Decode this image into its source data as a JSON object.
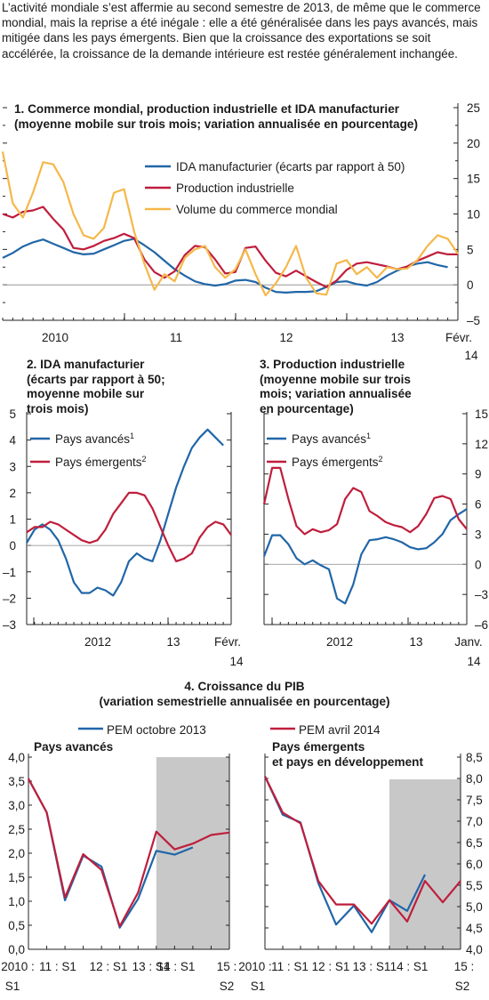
{
  "intro": "L’activité mondiale s’est affermie au second semestre de 2013, de même que le commerce mondial, mais la reprise a été inégale : elle a été généralisée dans les pays avancés, mais mitigée dans les pays émergents. Bien que la croissance des exportations se soit accélérée, la croissance de la demande intérieure est restée généralement inchangée.",
  "panel1": {
    "title_line1": "1. Commerce mondial, production industrielle et IDA manufacturier",
    "title_line2": "(moyenne mobile sur trois mois; variation annualisée en pourcentage)"
  },
  "panel2": {
    "title_lines": [
      "2. IDA manufacturier",
      "(écarts par rapport à 50;",
      "moyenne mobile sur",
      "trois mois)"
    ]
  },
  "panel3": {
    "title_lines": [
      "3. Production industrielle",
      "(moyenne mobile sur trois",
      "mois; variation annualisée",
      "en pourcentage)"
    ]
  },
  "panel4": {
    "title_line1": "4. Croissance du PIB",
    "title_line2": "(variation semestrielle annualisée en pourcentage)",
    "left_subtitle": "Pays avancés",
    "right_subtitle_lines": [
      "Pays émergents",
      "et pays en développement"
    ]
  },
  "colors": {
    "blue": "#2166a8",
    "red": "#bf1e3c",
    "yellow": "#f5b84a",
    "shade": "#c8c8c8",
    "axis": "#222222"
  },
  "chart_data": [
    {
      "id": "c1",
      "type": "line",
      "ylim": [
        -5,
        25
      ],
      "yticks": [
        "25",
        "20",
        "15",
        "10",
        "5",
        "0",
        "–5"
      ],
      "xticks": [
        "2010",
        "11",
        "12",
        "13",
        "Févr.",
        "14"
      ],
      "series": [
        {
          "name": "IDA manufacturier (écarts par rapport à 50)",
          "color": "blue",
          "values": [
            3.8,
            4.5,
            5.4,
            6.0,
            6.4,
            5.8,
            5.2,
            4.6,
            4.3,
            4.4,
            5.0,
            5.6,
            6.2,
            6.5,
            5.6,
            4.6,
            3.4,
            2.2,
            1.3,
            0.5,
            0.1,
            -0.1,
            0.1,
            0.6,
            0.7,
            0.4,
            -0.4,
            -1.0,
            -1.1,
            -1.0,
            -1.0,
            -0.9,
            -0.3,
            0.4,
            0.5,
            0.1,
            -0.1,
            0.4,
            1.3,
            2.0,
            2.6,
            3.0,
            3.2,
            2.8,
            2.5
          ]
        },
        {
          "name": "Production industrielle",
          "color": "red",
          "values": [
            10.0,
            9.5,
            10.3,
            10.5,
            11.0,
            9.3,
            7.8,
            5.2,
            5.0,
            5.5,
            6.2,
            6.6,
            7.2,
            6.6,
            3.6,
            1.8,
            1.0,
            1.9,
            4.2,
            5.5,
            5.3,
            3.6,
            1.6,
            1.8,
            5.2,
            5.4,
            3.4,
            1.7,
            1.2,
            2.0,
            1.2,
            0.4,
            -0.3,
            0.6,
            2.1,
            3.0,
            3.2,
            2.9,
            2.6,
            2.2,
            2.6,
            3.4,
            4.0,
            4.6,
            4.3,
            4.3
          ]
        },
        {
          "name": "Volume du commerce mondial",
          "color": "yellow",
          "values": [
            18.8,
            11.5,
            9.5,
            13.0,
            17.3,
            17.0,
            14.5,
            10.0,
            7.0,
            6.5,
            8.0,
            13.0,
            13.5,
            7.5,
            3.0,
            -0.7,
            1.5,
            0.5,
            3.8,
            5.0,
            5.5,
            2.5,
            1.0,
            2.2,
            5.0,
            1.5,
            -1.5,
            0.2,
            2.5,
            5.5,
            1.0,
            -1.2,
            -1.4,
            3.0,
            3.5,
            1.5,
            2.5,
            1.0,
            2.5,
            2.2,
            2.3,
            3.5,
            5.5,
            7.0,
            6.5,
            4.4
          ]
        }
      ]
    },
    {
      "id": "c2",
      "type": "line",
      "ylim": [
        -3,
        5
      ],
      "yticks": [
        "5",
        "4",
        "3",
        "2",
        "1",
        "0",
        "–1",
        "–2",
        "–3"
      ],
      "xticks": [
        "2012",
        "13",
        "Févr.",
        "14"
      ],
      "series": [
        {
          "name": "Pays avancés",
          "sup": "1",
          "color": "blue",
          "values": [
            0.1,
            0.6,
            0.8,
            0.6,
            0.2,
            -0.5,
            -1.4,
            -1.8,
            -1.8,
            -1.6,
            -1.7,
            -1.9,
            -1.4,
            -0.6,
            -0.3,
            -0.5,
            -0.6,
            0.2,
            1.2,
            2.2,
            3.0,
            3.7,
            4.1,
            4.4,
            4.1,
            3.8
          ]
        },
        {
          "name": "Pays émergents",
          "sup": "2",
          "color": "red",
          "values": [
            0.5,
            0.7,
            0.7,
            0.9,
            0.8,
            0.6,
            0.4,
            0.2,
            0.1,
            0.2,
            0.6,
            1.2,
            1.6,
            2.0,
            2.0,
            1.9,
            1.4,
            0.7,
            0.0,
            -0.6,
            -0.5,
            -0.3,
            0.3,
            0.7,
            0.9,
            0.8,
            0.4
          ]
        }
      ]
    },
    {
      "id": "c3",
      "type": "line",
      "ylim": [
        -6,
        15
      ],
      "yticks": [
        "15",
        "12",
        "9",
        "6",
        "3",
        "0",
        "–3",
        "–6"
      ],
      "xticks": [
        "2012",
        "13",
        "Janv.",
        "14"
      ],
      "series": [
        {
          "name": "Pays avancés",
          "sup": "1",
          "color": "blue",
          "values": [
            0.8,
            2.9,
            2.9,
            2.0,
            0.6,
            0.0,
            0.4,
            -0.1,
            -0.5,
            -3.4,
            -3.9,
            -2.0,
            1.0,
            2.4,
            2.5,
            2.7,
            2.5,
            2.2,
            1.7,
            1.5,
            1.6,
            2.2,
            3.0,
            4.4,
            5.0,
            5.5
          ]
        },
        {
          "name": "Pays émergents",
          "sup": "2",
          "color": "red",
          "values": [
            6.0,
            9.6,
            9.6,
            6.5,
            3.8,
            3.0,
            3.5,
            3.2,
            3.4,
            4.0,
            6.5,
            7.6,
            7.2,
            5.3,
            4.8,
            4.2,
            3.9,
            3.7,
            3.2,
            3.8,
            5.0,
            6.6,
            6.8,
            6.5,
            4.5,
            3.5
          ]
        }
      ]
    },
    {
      "id": "c4a",
      "type": "line",
      "ylim": [
        0,
        4
      ],
      "yticks": [
        "4,0",
        "3,5",
        "3,0",
        "2,5",
        "2,0",
        "1,5",
        "1,0",
        "0,5",
        "0,0"
      ],
      "xticks": [
        "2010 :",
        "11 : S1",
        "12 : S1",
        "13 : S1",
        "14 : S1",
        "15 :",
        "S1",
        "S2"
      ],
      "series": [
        {
          "name": "PEM octobre 2013",
          "color": "blue",
          "values": [
            3.55,
            2.85,
            1.02,
            1.95,
            1.72,
            0.45,
            1.05,
            2.05,
            1.97,
            2.12
          ]
        },
        {
          "name": "PEM avril 2014",
          "color": "red",
          "values": [
            3.55,
            2.85,
            1.08,
            1.98,
            1.65,
            0.48,
            1.18,
            2.45,
            2.08,
            2.2,
            2.38,
            2.43
          ]
        }
      ]
    },
    {
      "id": "c4b",
      "type": "line",
      "ylim": [
        4,
        8.5
      ],
      "yticks": [
        "8,5",
        "8,0",
        "7,5",
        "7,0",
        "6,5",
        "6,0",
        "5,5",
        "5,0",
        "4,5",
        "4,0"
      ],
      "xticks": [
        "2010 :",
        "11 : S1",
        "12 : S1",
        "13 : S1",
        "14 : S1",
        "15 :",
        "S1",
        "S2"
      ],
      "series": [
        {
          "name": "PEM octobre 2013",
          "color": "blue",
          "values": [
            8.05,
            7.15,
            6.97,
            5.55,
            4.58,
            5.02,
            4.4,
            5.15,
            4.9,
            5.75
          ]
        },
        {
          "name": "PEM avril 2014",
          "color": "red",
          "values": [
            8.05,
            7.2,
            6.95,
            5.6,
            5.05,
            5.05,
            4.6,
            5.15,
            4.65,
            5.6,
            5.1,
            5.6
          ]
        }
      ]
    }
  ]
}
